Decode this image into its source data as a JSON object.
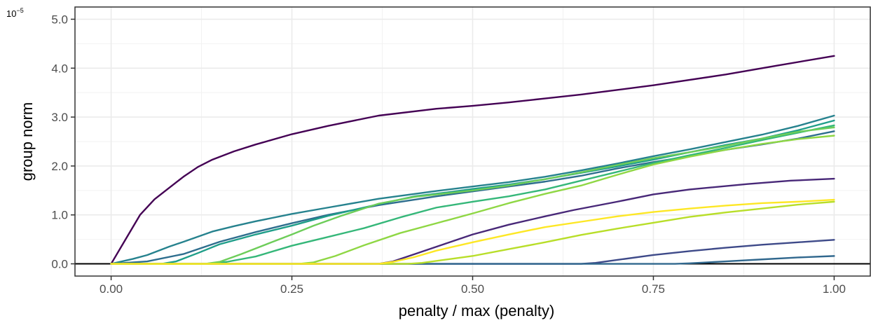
{
  "chart_data": {
    "type": "line",
    "xlabel": "penalty / max (penalty)",
    "ylabel": "group norm",
    "y_multiplier_label": "10",
    "y_multiplier_exponent": "−5",
    "xlim": [
      -0.05,
      1.05
    ],
    "ylim": [
      -0.25,
      5.25
    ],
    "x_ticks": [
      0,
      0.25,
      0.5,
      0.75,
      1
    ],
    "x_tick_labels": [
      "0.00",
      "0.25",
      "0.50",
      "0.75",
      "1.00"
    ],
    "y_ticks": [
      0,
      1,
      2,
      3,
      4,
      5
    ],
    "y_tick_labels": [
      "0.0",
      "1.0",
      "2.0",
      "3.0",
      "4.0",
      "5.0"
    ],
    "grid": true,
    "zero_line": true,
    "series": [
      {
        "color": "#440154",
        "points": [
          [
            0,
            0
          ],
          [
            0.02,
            0.5
          ],
          [
            0.04,
            1.0
          ],
          [
            0.06,
            1.32
          ],
          [
            0.08,
            1.55
          ],
          [
            0.1,
            1.78
          ],
          [
            0.12,
            1.98
          ],
          [
            0.14,
            2.13
          ],
          [
            0.17,
            2.3
          ],
          [
            0.2,
            2.44
          ],
          [
            0.25,
            2.65
          ],
          [
            0.3,
            2.82
          ],
          [
            0.37,
            3.03
          ],
          [
            0.45,
            3.17
          ],
          [
            0.5,
            3.23
          ],
          [
            0.55,
            3.3
          ],
          [
            0.6,
            3.38
          ],
          [
            0.65,
            3.46
          ],
          [
            0.75,
            3.65
          ],
          [
            0.85,
            3.87
          ],
          [
            0.92,
            4.05
          ],
          [
            1.0,
            4.25
          ]
        ]
      },
      {
        "color": "#482878",
        "points": [
          [
            0,
            0
          ],
          [
            0.37,
            0
          ],
          [
            0.39,
            0.05
          ],
          [
            0.42,
            0.2
          ],
          [
            0.46,
            0.4
          ],
          [
            0.5,
            0.6
          ],
          [
            0.55,
            0.8
          ],
          [
            0.6,
            0.97
          ],
          [
            0.64,
            1.1
          ],
          [
            0.7,
            1.27
          ],
          [
            0.75,
            1.42
          ],
          [
            0.8,
            1.52
          ],
          [
            0.88,
            1.63
          ],
          [
            0.94,
            1.7
          ],
          [
            1.0,
            1.74
          ]
        ]
      },
      {
        "color": "#3E4A89",
        "points": [
          [
            0,
            0
          ],
          [
            0.65,
            0
          ],
          [
            0.67,
            0.02
          ],
          [
            0.7,
            0.08
          ],
          [
            0.75,
            0.18
          ],
          [
            0.8,
            0.26
          ],
          [
            0.85,
            0.33
          ],
          [
            0.9,
            0.39
          ],
          [
            0.95,
            0.44
          ],
          [
            1.0,
            0.49
          ]
        ]
      },
      {
        "color": "#31688E",
        "points": [
          [
            0,
            0
          ],
          [
            0.78,
            0
          ],
          [
            0.8,
            0.01
          ],
          [
            0.85,
            0.05
          ],
          [
            0.9,
            0.09
          ],
          [
            0.95,
            0.13
          ],
          [
            1.0,
            0.16
          ]
        ]
      },
      {
        "color": "#2E6E8E",
        "points": [
          [
            0,
            0
          ],
          [
            0.05,
            0.05
          ],
          [
            0.1,
            0.2
          ],
          [
            0.15,
            0.45
          ],
          [
            0.2,
            0.65
          ],
          [
            0.25,
            0.83
          ],
          [
            0.3,
            1.0
          ],
          [
            0.37,
            1.2
          ],
          [
            0.45,
            1.38
          ],
          [
            0.5,
            1.48
          ],
          [
            0.55,
            1.58
          ],
          [
            0.6,
            1.68
          ],
          [
            0.65,
            1.8
          ],
          [
            0.7,
            1.95
          ],
          [
            0.75,
            2.08
          ],
          [
            0.8,
            2.2
          ],
          [
            0.85,
            2.33
          ],
          [
            0.9,
            2.44
          ],
          [
            0.95,
            2.56
          ],
          [
            1.0,
            2.71
          ]
        ]
      },
      {
        "color": "#26828E",
        "points": [
          [
            0,
            0
          ],
          [
            0.03,
            0.1
          ],
          [
            0.05,
            0.18
          ],
          [
            0.08,
            0.35
          ],
          [
            0.1,
            0.45
          ],
          [
            0.14,
            0.66
          ],
          [
            0.17,
            0.77
          ],
          [
            0.2,
            0.87
          ],
          [
            0.25,
            1.02
          ],
          [
            0.3,
            1.15
          ],
          [
            0.37,
            1.33
          ],
          [
            0.45,
            1.49
          ],
          [
            0.5,
            1.58
          ],
          [
            0.55,
            1.67
          ],
          [
            0.6,
            1.78
          ],
          [
            0.65,
            1.91
          ],
          [
            0.7,
            2.05
          ],
          [
            0.75,
            2.2
          ],
          [
            0.8,
            2.34
          ],
          [
            0.85,
            2.49
          ],
          [
            0.9,
            2.64
          ],
          [
            0.95,
            2.82
          ],
          [
            1.0,
            3.03
          ]
        ]
      },
      {
        "color": "#1F9E89",
        "points": [
          [
            0,
            0
          ],
          [
            0.07,
            0
          ],
          [
            0.09,
            0.05
          ],
          [
            0.12,
            0.22
          ],
          [
            0.15,
            0.4
          ],
          [
            0.2,
            0.6
          ],
          [
            0.25,
            0.78
          ],
          [
            0.3,
            0.98
          ],
          [
            0.37,
            1.22
          ],
          [
            0.42,
            1.38
          ],
          [
            0.47,
            1.47
          ],
          [
            0.5,
            1.53
          ],
          [
            0.55,
            1.62
          ],
          [
            0.6,
            1.73
          ],
          [
            0.65,
            1.86
          ],
          [
            0.7,
            1.99
          ],
          [
            0.75,
            2.13
          ],
          [
            0.8,
            2.28
          ],
          [
            0.85,
            2.43
          ],
          [
            0.9,
            2.56
          ],
          [
            0.95,
            2.73
          ],
          [
            1.0,
            2.93
          ]
        ]
      },
      {
        "color": "#35B779",
        "points": [
          [
            0,
            0
          ],
          [
            0.13,
            0
          ],
          [
            0.16,
            0.04
          ],
          [
            0.2,
            0.15
          ],
          [
            0.25,
            0.37
          ],
          [
            0.3,
            0.55
          ],
          [
            0.35,
            0.73
          ],
          [
            0.4,
            0.95
          ],
          [
            0.45,
            1.15
          ],
          [
            0.5,
            1.27
          ],
          [
            0.55,
            1.38
          ],
          [
            0.6,
            1.52
          ],
          [
            0.65,
            1.7
          ],
          [
            0.7,
            1.88
          ],
          [
            0.75,
            2.06
          ],
          [
            0.8,
            2.22
          ],
          [
            0.85,
            2.37
          ],
          [
            0.9,
            2.53
          ],
          [
            0.95,
            2.68
          ],
          [
            1.0,
            2.83
          ]
        ]
      },
      {
        "color": "#6DCD59",
        "points": [
          [
            0,
            0
          ],
          [
            0.13,
            0
          ],
          [
            0.15,
            0.04
          ],
          [
            0.18,
            0.2
          ],
          [
            0.22,
            0.43
          ],
          [
            0.25,
            0.6
          ],
          [
            0.28,
            0.78
          ],
          [
            0.32,
            0.99
          ],
          [
            0.37,
            1.23
          ],
          [
            0.42,
            1.37
          ],
          [
            0.47,
            1.45
          ],
          [
            0.5,
            1.5
          ],
          [
            0.55,
            1.6
          ],
          [
            0.6,
            1.73
          ],
          [
            0.65,
            1.87
          ],
          [
            0.7,
            2.02
          ],
          [
            0.75,
            2.16
          ],
          [
            0.8,
            2.28
          ],
          [
            0.85,
            2.41
          ],
          [
            0.9,
            2.56
          ],
          [
            0.95,
            2.7
          ],
          [
            1.0,
            2.79
          ]
        ]
      },
      {
        "color": "#8FD744",
        "points": [
          [
            0,
            0
          ],
          [
            0.26,
            0
          ],
          [
            0.28,
            0.03
          ],
          [
            0.31,
            0.16
          ],
          [
            0.35,
            0.38
          ],
          [
            0.4,
            0.63
          ],
          [
            0.45,
            0.83
          ],
          [
            0.5,
            1.03
          ],
          [
            0.55,
            1.24
          ],
          [
            0.6,
            1.43
          ],
          [
            0.65,
            1.6
          ],
          [
            0.7,
            1.82
          ],
          [
            0.75,
            2.03
          ],
          [
            0.8,
            2.19
          ],
          [
            0.85,
            2.33
          ],
          [
            0.9,
            2.45
          ],
          [
            0.95,
            2.55
          ],
          [
            1.0,
            2.62
          ]
        ]
      },
      {
        "color": "#B8DE29",
        "points": [
          [
            0,
            0
          ],
          [
            0.41,
            0
          ],
          [
            0.43,
            0.02
          ],
          [
            0.47,
            0.1
          ],
          [
            0.5,
            0.16
          ],
          [
            0.55,
            0.3
          ],
          [
            0.6,
            0.44
          ],
          [
            0.65,
            0.59
          ],
          [
            0.7,
            0.72
          ],
          [
            0.75,
            0.84
          ],
          [
            0.8,
            0.96
          ],
          [
            0.85,
            1.05
          ],
          [
            0.9,
            1.13
          ],
          [
            0.95,
            1.21
          ],
          [
            1.0,
            1.27
          ]
        ]
      },
      {
        "color": "#FDE725",
        "points": [
          [
            0,
            0
          ],
          [
            0.37,
            0
          ],
          [
            0.39,
            0.04
          ],
          [
            0.42,
            0.14
          ],
          [
            0.45,
            0.27
          ],
          [
            0.5,
            0.44
          ],
          [
            0.55,
            0.6
          ],
          [
            0.6,
            0.75
          ],
          [
            0.65,
            0.86
          ],
          [
            0.7,
            0.97
          ],
          [
            0.75,
            1.06
          ],
          [
            0.8,
            1.13
          ],
          [
            0.85,
            1.19
          ],
          [
            0.9,
            1.24
          ],
          [
            0.95,
            1.27
          ],
          [
            1.0,
            1.31
          ]
        ]
      }
    ]
  }
}
